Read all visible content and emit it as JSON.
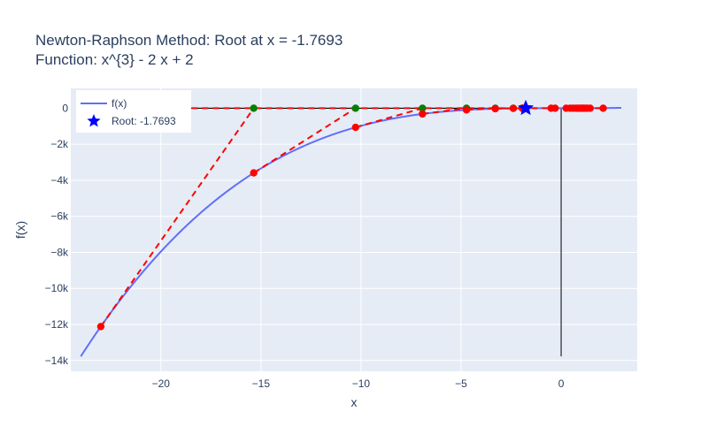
{
  "chart_data": {
    "type": "line",
    "title_line1": "Newton-Raphson Method: Root at x = -1.7693",
    "title_line2": "Function: x^{3} - 2 x + 2",
    "xlabel": "x",
    "ylabel": "f(x)",
    "xlim": [
      -24.5,
      3.8
    ],
    "ylim": [
      -14600,
      1100
    ],
    "x_ticks": [
      -20,
      -15,
      -10,
      -5,
      0
    ],
    "x_tick_labels": [
      "−20",
      "−15",
      "−10",
      "−5",
      "0"
    ],
    "y_ticks": [
      0,
      -2000,
      -4000,
      -6000,
      -8000,
      -10000,
      -12000,
      -14000
    ],
    "y_tick_labels": [
      "0",
      "−2k",
      "−4k",
      "−6k",
      "−8k",
      "−10k",
      "−12k",
      "−14k"
    ],
    "grid": true,
    "legend": {
      "placement": "top-left",
      "items": [
        {
          "label": "f(x)",
          "kind": "line",
          "color": "#636efa"
        },
        {
          "label": "Root: -1.7693",
          "kind": "star",
          "color": "#0000ff"
        }
      ]
    },
    "function_curve": {
      "name": "f(x)",
      "color": "#636efa",
      "x_range": [
        -24,
        3
      ],
      "expression": "x^3 - 2x + 2"
    },
    "iterates": [
      {
        "x": -23.0,
        "y": -12119
      },
      {
        "x": -15.36,
        "y": -3590
      },
      {
        "x": -10.27,
        "y": -1061
      },
      {
        "x": -6.93,
        "y": -317
      },
      {
        "x": -4.73,
        "y": -94
      },
      {
        "x": -3.29,
        "y": -27
      },
      {
        "x": -2.39,
        "y": -6.9
      },
      {
        "x": -1.94,
        "y": -1.4
      },
      {
        "x": -1.79,
        "y": -0.1
      }
    ],
    "extra_red_points_x": [
      -0.5,
      -0.3,
      0.25,
      0.45,
      0.6,
      0.75,
      0.85,
      0.95,
      1.05,
      1.1,
      1.2,
      1.3,
      1.45,
      2.1
    ],
    "root": {
      "x": -1.7693,
      "y": 0,
      "color": "#0000ff"
    },
    "colors": {
      "iterate_points": "#ff0000",
      "zero_crossings": "#008000",
      "tangent_lines": "#ff0000",
      "zero_line": "#000000",
      "plot_background": "#e5ecf6",
      "grid": "#ffffff"
    }
  }
}
